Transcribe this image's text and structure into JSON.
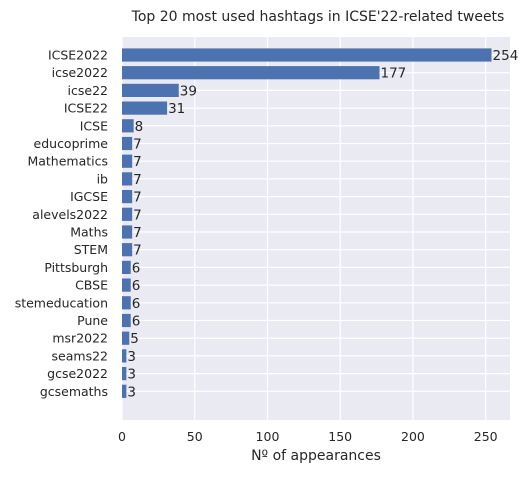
{
  "chart_data": {
    "type": "bar",
    "orientation": "horizontal",
    "title": "Top 20 most used hashtags in ICSE'22-related tweets",
    "xlabel": "Nº of appearances",
    "ylabel": "",
    "xlim": [
      0,
      266.7
    ],
    "xticks": [
      "0",
      "50",
      "100",
      "150",
      "200",
      "250"
    ],
    "grid": true,
    "categories": [
      "ICSE2022",
      "icse2022",
      "icse22",
      "ICSE22",
      "ICSE",
      "educoprime",
      "Mathematics",
      "ib",
      "IGCSE",
      "alevels2022",
      "Maths",
      "STEM",
      "Pittsburgh",
      "CBSE",
      "stemeducation",
      "Pune",
      "msr2022",
      "seams22",
      "gcse2022",
      "gcsemaths"
    ],
    "values": [
      254,
      177,
      39,
      31,
      8,
      7,
      7,
      7,
      7,
      7,
      7,
      7,
      6,
      6,
      6,
      6,
      5,
      3,
      3,
      3
    ],
    "value_labels": [
      "254",
      "177",
      "39",
      "31",
      "8",
      "7",
      "7",
      "7",
      "7",
      "7",
      "7",
      "7",
      "6",
      "6",
      "6",
      "6",
      "5",
      "3",
      "3",
      "3"
    ],
    "colors": {
      "bar": "#4c72b0",
      "background": "#eaeaf2",
      "grid": "#ffffff",
      "text": "#262626"
    }
  }
}
